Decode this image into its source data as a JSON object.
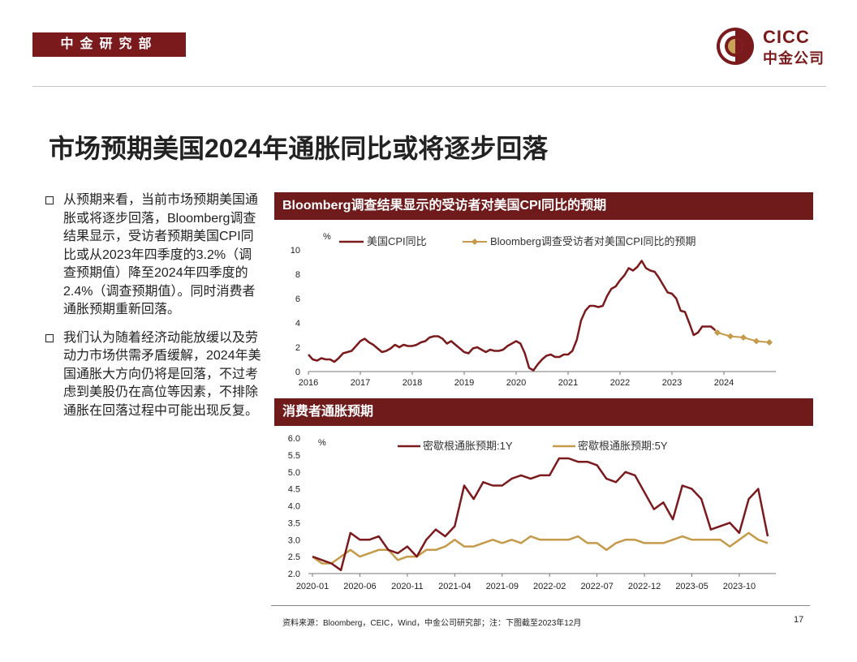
{
  "header": {
    "department": "中金研究部",
    "logo_en": "CICC",
    "logo_cn": "中金公司"
  },
  "title": "市场预期美国2024年通胀同比或将逐步回落",
  "bullets": [
    "从预期来看，当前市场预期美国通胀或将逐步回落，Bloomberg调查结果显示，受访者预期美国CPI同比或从2023年四季度的3.2%（调查预期值）降至2024年四季度的2.4%（调查预期值）。同时消费者通胀预期重新回落。",
    "我们认为随着经济动能放缓以及劳动力市场供需矛盾缓解，2024年美国通胀大方向仍将是回落，不过考虑到美股仍在高位等因素，不排除通胀在回落过程中可能出现反复。"
  ],
  "colors": {
    "brand": "#7b1a1c",
    "header_bg": "#6f1b1c",
    "series_dark": "#7b1a1c",
    "series_gold": "#c59a4a"
  },
  "chart_data": [
    {
      "type": "line",
      "title": "Bloomberg调查结果显示的受访者对美国CPI同比的预期",
      "ylabel": "%",
      "ylim": [
        0,
        10
      ],
      "yticks": [
        "0",
        "2",
        "4",
        "6",
        "8",
        "10"
      ],
      "xlim": [
        2016,
        2025
      ],
      "xticks": [
        "2016",
        "2017",
        "2018",
        "2019",
        "2020",
        "2021",
        "2022",
        "2023",
        "2024"
      ],
      "series": [
        {
          "name": "美国CPI同比",
          "x": [
            2016.0,
            2016.083,
            2016.167,
            2016.25,
            2016.333,
            2016.417,
            2016.5,
            2016.583,
            2016.667,
            2016.75,
            2016.833,
            2016.917,
            2017.0,
            2017.083,
            2017.167,
            2017.25,
            2017.333,
            2017.417,
            2017.5,
            2017.583,
            2017.667,
            2017.75,
            2017.833,
            2017.917,
            2018.0,
            2018.083,
            2018.167,
            2018.25,
            2018.333,
            2018.417,
            2018.5,
            2018.583,
            2018.667,
            2018.75,
            2018.833,
            2018.917,
            2019.0,
            2019.083,
            2019.167,
            2019.25,
            2019.333,
            2019.417,
            2019.5,
            2019.583,
            2019.667,
            2019.75,
            2019.833,
            2019.917,
            2020.0,
            2020.083,
            2020.167,
            2020.25,
            2020.333,
            2020.417,
            2020.5,
            2020.583,
            2020.667,
            2020.75,
            2020.833,
            2020.917,
            2021.0,
            2021.083,
            2021.167,
            2021.25,
            2021.333,
            2021.417,
            2021.5,
            2021.583,
            2021.667,
            2021.75,
            2021.833,
            2021.917,
            2022.0,
            2022.083,
            2022.167,
            2022.25,
            2022.333,
            2022.417,
            2022.5,
            2022.583,
            2022.667,
            2022.75,
            2022.833,
            2022.917,
            2023.0,
            2023.083,
            2023.167,
            2023.25,
            2023.333,
            2023.417,
            2023.5,
            2023.583,
            2023.667,
            2023.75,
            2023.833
          ],
          "values": [
            1.4,
            1.0,
            0.9,
            1.1,
            1.0,
            1.0,
            0.8,
            1.1,
            1.5,
            1.6,
            1.7,
            2.1,
            2.5,
            2.7,
            2.4,
            2.2,
            1.9,
            1.6,
            1.7,
            1.9,
            2.2,
            2.0,
            2.2,
            2.1,
            2.1,
            2.2,
            2.4,
            2.5,
            2.8,
            2.9,
            2.9,
            2.7,
            2.3,
            2.5,
            2.2,
            1.9,
            1.6,
            1.5,
            1.9,
            2.0,
            1.8,
            1.6,
            1.8,
            1.7,
            1.7,
            1.8,
            2.1,
            2.3,
            2.5,
            2.3,
            1.5,
            0.3,
            0.1,
            0.6,
            1.0,
            1.3,
            1.4,
            1.2,
            1.2,
            1.4,
            1.4,
            1.7,
            2.6,
            4.2,
            5.0,
            5.4,
            5.4,
            5.3,
            5.4,
            6.2,
            6.8,
            7.0,
            7.5,
            7.9,
            8.5,
            8.3,
            8.6,
            9.1,
            8.5,
            8.3,
            8.2,
            7.7,
            7.1,
            6.5,
            6.4,
            6.0,
            5.0,
            4.9,
            4.0,
            3.0,
            3.2,
            3.7,
            3.7,
            3.7,
            3.4
          ]
        },
        {
          "name": "Bloomberg调查受访者对美国CPI同比的预期",
          "x": [
            2023.875,
            2024.125,
            2024.375,
            2024.625,
            2024.875
          ],
          "values": [
            3.2,
            2.9,
            2.8,
            2.5,
            2.4
          ]
        }
      ]
    },
    {
      "type": "line",
      "title": "消费者通胀预期",
      "ylabel": "%",
      "ylim": [
        2.0,
        6.0
      ],
      "yticks": [
        "2.0",
        "2.5",
        "3.0",
        "3.5",
        "4.0",
        "4.5",
        "5.0",
        "5.5",
        "6.0"
      ],
      "xticks": [
        "2020-01",
        "2020-06",
        "2020-11",
        "2021-04",
        "2021-09",
        "2022-02",
        "2022-07",
        "2022-12",
        "2023-05",
        "2023-10"
      ],
      "series": [
        {
          "name": "密歇根通胀预期:1Y",
          "values": [
            2.5,
            2.4,
            2.3,
            2.1,
            3.2,
            3.0,
            3.0,
            3.1,
            2.7,
            2.6,
            2.8,
            2.5,
            3.0,
            3.3,
            3.1,
            3.4,
            4.6,
            4.2,
            4.7,
            4.6,
            4.6,
            4.8,
            4.9,
            4.8,
            4.9,
            4.9,
            5.4,
            5.4,
            5.3,
            5.3,
            5.2,
            4.8,
            4.7,
            5.0,
            4.9,
            4.4,
            3.9,
            4.1,
            3.6,
            4.6,
            4.5,
            4.2,
            3.3,
            3.4,
            3.5,
            3.2,
            4.2,
            4.5,
            3.1
          ]
        },
        {
          "name": "密歇根通胀预期:5Y",
          "values": [
            2.5,
            2.3,
            2.3,
            2.5,
            2.7,
            2.5,
            2.6,
            2.7,
            2.7,
            2.4,
            2.5,
            2.5,
            2.7,
            2.7,
            2.8,
            3.0,
            2.8,
            2.8,
            2.9,
            3.0,
            2.9,
            3.0,
            2.9,
            3.1,
            3.0,
            3.0,
            3.0,
            3.0,
            3.1,
            2.9,
            2.9,
            2.7,
            2.9,
            3.0,
            3.0,
            2.9,
            2.9,
            2.9,
            3.0,
            3.1,
            3.0,
            3.0,
            3.0,
            3.0,
            2.8,
            3.0,
            3.2,
            3.0,
            2.9
          ]
        }
      ]
    }
  ],
  "footer": {
    "source": "资料来源：Bloomberg，CEIC，Wind，中金公司研究部；注：下图截至2023年12月",
    "page": "17"
  }
}
